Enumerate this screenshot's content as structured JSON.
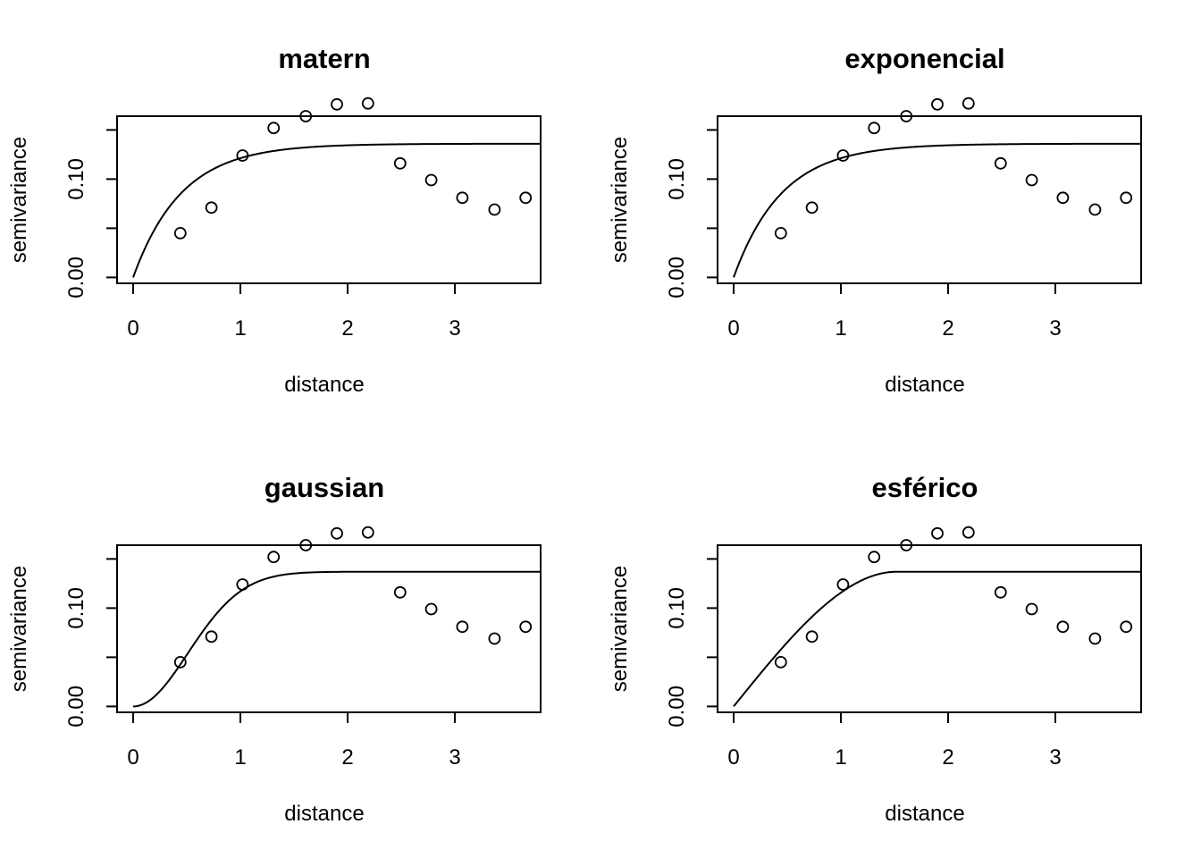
{
  "chart_data": [
    {
      "type": "scatter",
      "title": "matern",
      "xlabel": "distance",
      "ylabel": "semivariance",
      "xlim": [
        -0.15,
        3.8
      ],
      "ylim": [
        -0.006,
        0.164
      ],
      "x_ticks": [
        0,
        1,
        2,
        3
      ],
      "x_tick_labels": [
        "0",
        "1",
        "2",
        "3"
      ],
      "y_ticks": [
        0.0,
        0.05,
        0.1,
        0.15
      ],
      "y_tick_labels": [
        "0.00",
        "",
        "0.10",
        ""
      ],
      "points": {
        "x": [
          0.44,
          0.73,
          1.02,
          1.31,
          1.61,
          1.9,
          2.19,
          2.49,
          2.78,
          3.07,
          3.37,
          3.66
        ],
        "y": [
          0.045,
          0.071,
          0.124,
          0.152,
          0.164,
          0.176,
          0.177,
          0.116,
          0.099,
          0.081,
          0.069,
          0.081
        ]
      },
      "model_curve": {
        "model": "matern",
        "sill": 0.136,
        "range": 0.45
      },
      "grid": false
    },
    {
      "type": "scatter",
      "title": "exponencial",
      "xlabel": "distance",
      "ylabel": "semivariance",
      "xlim": [
        -0.15,
        3.8
      ],
      "ylim": [
        -0.006,
        0.164
      ],
      "x_ticks": [
        0,
        1,
        2,
        3
      ],
      "x_tick_labels": [
        "0",
        "1",
        "2",
        "3"
      ],
      "y_ticks": [
        0.0,
        0.05,
        0.1,
        0.15
      ],
      "y_tick_labels": [
        "0.00",
        "",
        "0.10",
        ""
      ],
      "points": {
        "x": [
          0.44,
          0.73,
          1.02,
          1.31,
          1.61,
          1.9,
          2.19,
          2.49,
          2.78,
          3.07,
          3.37,
          3.66
        ],
        "y": [
          0.045,
          0.071,
          0.124,
          0.152,
          0.164,
          0.176,
          0.177,
          0.116,
          0.099,
          0.081,
          0.069,
          0.081
        ]
      },
      "model_curve": {
        "model": "exponential",
        "sill": 0.136,
        "range": 0.45
      },
      "grid": false
    },
    {
      "type": "scatter",
      "title": "gaussian",
      "xlabel": "distance",
      "ylabel": "semivariance",
      "xlim": [
        -0.15,
        3.8
      ],
      "ylim": [
        -0.006,
        0.164
      ],
      "x_ticks": [
        0,
        1,
        2,
        3
      ],
      "x_tick_labels": [
        "0",
        "1",
        "2",
        "3"
      ],
      "y_ticks": [
        0.0,
        0.05,
        0.1,
        0.15
      ],
      "y_tick_labels": [
        "0.00",
        "",
        "0.10",
        ""
      ],
      "points": {
        "x": [
          0.44,
          0.73,
          1.02,
          1.31,
          1.61,
          1.9,
          2.19,
          2.49,
          2.78,
          3.07,
          3.37,
          3.66
        ],
        "y": [
          0.045,
          0.071,
          0.124,
          0.152,
          0.164,
          0.176,
          0.177,
          0.116,
          0.099,
          0.081,
          0.069,
          0.081
        ]
      },
      "model_curve": {
        "model": "gaussian",
        "sill": 0.137,
        "range": 0.72
      },
      "grid": false
    },
    {
      "type": "scatter",
      "title": "esférico",
      "xlabel": "distance",
      "ylabel": "semivariance",
      "xlim": [
        -0.15,
        3.8
      ],
      "ylim": [
        -0.006,
        0.164
      ],
      "x_ticks": [
        0,
        1,
        2,
        3
      ],
      "x_tick_labels": [
        "0",
        "1",
        "2",
        "3"
      ],
      "y_ticks": [
        0.0,
        0.05,
        0.1,
        0.15
      ],
      "y_tick_labels": [
        "0.00",
        "",
        "0.10",
        ""
      ],
      "points": {
        "x": [
          0.44,
          0.73,
          1.02,
          1.31,
          1.61,
          1.9,
          2.19,
          2.49,
          2.78,
          3.07,
          3.37,
          3.66
        ],
        "y": [
          0.045,
          0.071,
          0.124,
          0.152,
          0.164,
          0.176,
          0.177,
          0.116,
          0.099,
          0.081,
          0.069,
          0.081
        ]
      },
      "model_curve": {
        "model": "spherical",
        "sill": 0.137,
        "range": 1.52
      },
      "grid": false
    }
  ]
}
